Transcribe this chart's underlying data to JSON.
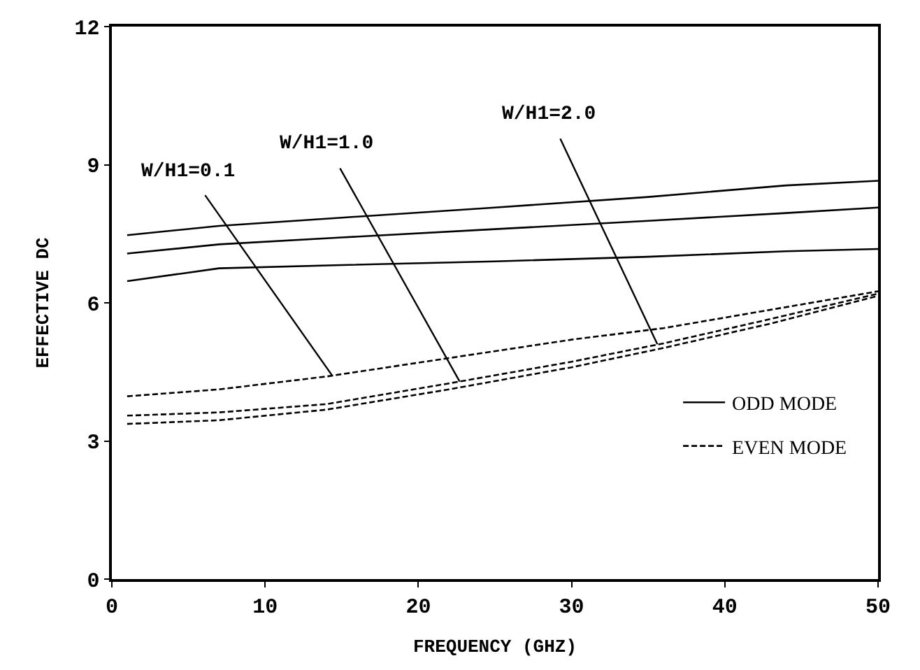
{
  "chart_data": {
    "type": "line",
    "xlabel": "FREQUENCY (GHZ)",
    "ylabel": "EFFECTIVE DC",
    "xlim": [
      0,
      50
    ],
    "xticks": [
      0,
      10,
      20,
      30,
      40,
      50
    ],
    "ylim": [
      0,
      12
    ],
    "yticks": [
      0,
      3,
      6,
      9,
      12
    ],
    "legend": "bottom right",
    "marker": "none",
    "series": [
      {
        "name": "ODD MODE",
        "color": "#000000",
        "line_style": "solid",
        "x": [
          1,
          7,
          15,
          25,
          35,
          44,
          50
        ],
        "values": [
          7.47,
          7.67,
          7.85,
          8.07,
          8.3,
          8.55,
          8.65
        ]
      },
      {
        "color": "#000000",
        "line_style": "solid",
        "x": [
          1,
          7,
          15,
          25,
          35,
          44,
          50
        ],
        "values": [
          7.07,
          7.27,
          7.42,
          7.6,
          7.78,
          7.95,
          8.07
        ]
      },
      {
        "color": "#000000",
        "line_style": "solid",
        "x": [
          1,
          7,
          15,
          25,
          35,
          44,
          50
        ],
        "values": [
          6.47,
          6.75,
          6.82,
          6.9,
          7.0,
          7.12,
          7.17
        ]
      },
      {
        "name": "EVEN MODE",
        "color": "#000000",
        "line_style": "dashed",
        "x": [
          1,
          7,
          14,
          22,
          30,
          36,
          43,
          50
        ],
        "values": [
          3.97,
          4.12,
          4.4,
          4.8,
          5.2,
          5.45,
          5.85,
          6.25
        ]
      },
      {
        "color": "#000000",
        "line_style": "dashed",
        "x": [
          1,
          7,
          14,
          22,
          30,
          36,
          43,
          50
        ],
        "values": [
          3.55,
          3.62,
          3.8,
          4.25,
          4.72,
          5.12,
          5.65,
          6.2
        ]
      },
      {
        "color": "#000000",
        "line_style": "dashed",
        "x": [
          1,
          7,
          14,
          22,
          30,
          36,
          43,
          50
        ],
        "values": [
          3.37,
          3.45,
          3.68,
          4.12,
          4.6,
          5.02,
          5.55,
          6.15
        ]
      }
    ],
    "annotations": [
      {
        "text": "W/H1=0.1",
        "x": 14.4,
        "y": 4.41
      },
      {
        "text": "W/H1=1.0",
        "x": 22.7,
        "y": 4.29
      },
      {
        "text": "W/H1=2.0",
        "x": 35.6,
        "y": 5.1
      }
    ]
  }
}
